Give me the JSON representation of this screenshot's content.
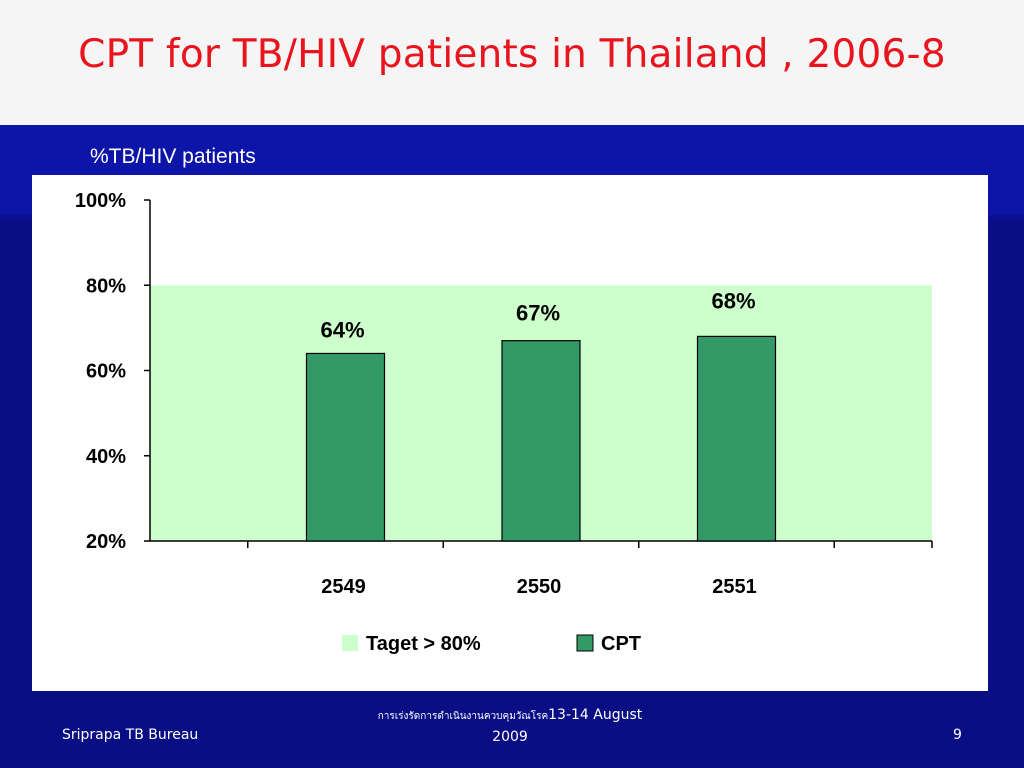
{
  "slide": {
    "title": "CPT for TB/HIV patients in Thailand , 2006-8",
    "subtitle": "%TB/HIV patients"
  },
  "footer": {
    "left": "Sriprapa TB Bureau",
    "center_thai": "การเร่งรัดการดำเนินงานควบคุมวัณโรค",
    "center_date_1": "13-14 August",
    "center_date_2": "2009",
    "page_number": "9"
  },
  "colors": {
    "title": "#e8141e",
    "background": "#0a0e85",
    "target_band": "#ccffcc",
    "bar": "#339966"
  },
  "chart_data": {
    "type": "bar",
    "categories": [
      "2549",
      "2550",
      "2551"
    ],
    "series": [
      {
        "name": "CPT",
        "values": [
          64,
          67,
          68
        ],
        "labels": [
          "64%",
          "67%",
          "68%"
        ],
        "color": "#339966"
      }
    ],
    "target": {
      "name": "Taget > 80%",
      "from": 20,
      "to": 80,
      "color": "#ccffcc"
    },
    "ylim": [
      20,
      100
    ],
    "yticks": [
      20,
      40,
      60,
      80,
      100
    ],
    "ytick_labels": [
      "20%",
      "40%",
      "60%",
      "80%",
      "100%"
    ],
    "legend": [
      {
        "label": "Taget > 80%",
        "color": "#ccffcc"
      },
      {
        "label": "CPT",
        "color": "#339966"
      }
    ],
    "legend_position": "bottom",
    "grid": false
  }
}
